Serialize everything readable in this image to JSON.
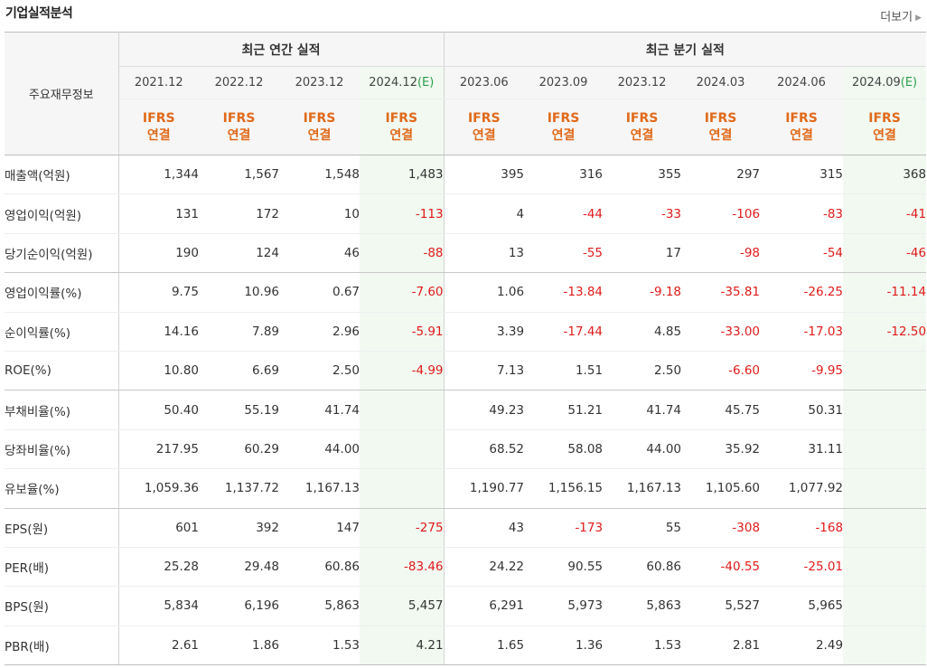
{
  "header": {
    "title": "기업실적분석",
    "more_label": "더보기"
  },
  "table": {
    "category_header": "주요재무정보",
    "group_annual": "최근 연간 실적",
    "group_quarter": "최근 분기 실적",
    "periods": [
      {
        "date": "2021.12",
        "est": "",
        "ifrs_line1": "IFRS",
        "ifrs_line2": "연결"
      },
      {
        "date": "2022.12",
        "est": "",
        "ifrs_line1": "IFRS",
        "ifrs_line2": "연결"
      },
      {
        "date": "2023.12",
        "est": "",
        "ifrs_line1": "IFRS",
        "ifrs_line2": "연결"
      },
      {
        "date": "2024.12",
        "est": "(E)",
        "ifrs_line1": "IFRS",
        "ifrs_line2": "연결"
      },
      {
        "date": "2023.06",
        "est": "",
        "ifrs_line1": "IFRS",
        "ifrs_line2": "연결"
      },
      {
        "date": "2023.09",
        "est": "",
        "ifrs_line1": "IFRS",
        "ifrs_line2": "연결"
      },
      {
        "date": "2023.12",
        "est": "",
        "ifrs_line1": "IFRS",
        "ifrs_line2": "연결"
      },
      {
        "date": "2024.03",
        "est": "",
        "ifrs_line1": "IFRS",
        "ifrs_line2": "연결"
      },
      {
        "date": "2024.06",
        "est": "",
        "ifrs_line1": "IFRS",
        "ifrs_line2": "연결"
      },
      {
        "date": "2024.09",
        "est": "(E)",
        "ifrs_line1": "IFRS",
        "ifrs_line2": "연결"
      }
    ],
    "rows": [
      {
        "label": "매출액(억원)",
        "values": [
          "1,344",
          "1,567",
          "1,548",
          "1,483",
          "395",
          "316",
          "355",
          "297",
          "315",
          "368"
        ]
      },
      {
        "label": "영업이익(억원)",
        "values": [
          "131",
          "172",
          "10",
          "-113",
          "4",
          "-44",
          "-33",
          "-106",
          "-83",
          "-41"
        ]
      },
      {
        "label": "당기순이익(억원)",
        "values": [
          "190",
          "124",
          "46",
          "-88",
          "13",
          "-55",
          "17",
          "-98",
          "-54",
          "-46"
        ]
      },
      {
        "label": "영업이익률(%)",
        "values": [
          "9.75",
          "10.96",
          "0.67",
          "-7.60",
          "1.06",
          "-13.84",
          "-9.18",
          "-35.81",
          "-26.25",
          "-11.14"
        ]
      },
      {
        "label": "순이익률(%)",
        "values": [
          "14.16",
          "7.89",
          "2.96",
          "-5.91",
          "3.39",
          "-17.44",
          "4.85",
          "-33.00",
          "-17.03",
          "-12.50"
        ]
      },
      {
        "label": "ROE(%)",
        "values": [
          "10.80",
          "6.69",
          "2.50",
          "-4.99",
          "7.13",
          "1.51",
          "2.50",
          "-6.60",
          "-9.95",
          ""
        ]
      },
      {
        "label": "부채비율(%)",
        "values": [
          "50.40",
          "55.19",
          "41.74",
          "",
          "49.23",
          "51.21",
          "41.74",
          "45.75",
          "50.31",
          ""
        ]
      },
      {
        "label": "당좌비율(%)",
        "values": [
          "217.95",
          "60.29",
          "44.00",
          "",
          "68.52",
          "58.08",
          "44.00",
          "35.92",
          "31.11",
          ""
        ]
      },
      {
        "label": "유보율(%)",
        "values": [
          "1,059.36",
          "1,137.72",
          "1,167.13",
          "",
          "1,190.77",
          "1,156.15",
          "1,167.13",
          "1,105.60",
          "1,077.92",
          ""
        ]
      },
      {
        "label": "EPS(원)",
        "values": [
          "601",
          "392",
          "147",
          "-275",
          "43",
          "-173",
          "55",
          "-308",
          "-168",
          ""
        ]
      },
      {
        "label": "PER(배)",
        "values": [
          "25.28",
          "29.48",
          "60.86",
          "-83.46",
          "24.22",
          "90.55",
          "60.86",
          "-40.55",
          "-25.01",
          ""
        ]
      },
      {
        "label": "BPS(원)",
        "values": [
          "5,834",
          "6,196",
          "5,863",
          "5,457",
          "6,291",
          "5,973",
          "5,863",
          "5,527",
          "5,965",
          ""
        ]
      },
      {
        "label": "PBR(배)",
        "values": [
          "2.61",
          "1.86",
          "1.53",
          "4.21",
          "1.65",
          "1.36",
          "1.53",
          "2.81",
          "2.49",
          ""
        ]
      }
    ]
  },
  "colors": {
    "negative": "#e01a1a",
    "ifrs": "#e06a1a",
    "estimate_text": "#2f9f4a",
    "estimate_bg": "#f1f9f1",
    "header_bg": "#f6f6f6"
  }
}
